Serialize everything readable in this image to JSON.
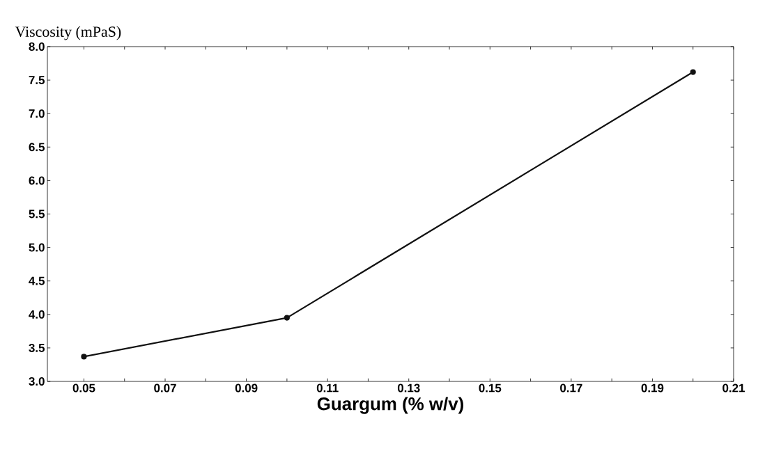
{
  "chart_data": {
    "type": "line",
    "ylabel": "Viscosity (mPaS)",
    "xlabel": "Guargum (% w/v)",
    "x": [
      0.05,
      0.1,
      0.2
    ],
    "series": [
      {
        "color": "#111111",
        "values": [
          3.37,
          3.95,
          7.62
        ]
      }
    ],
    "xlim": [
      0.041,
      0.21
    ],
    "ylim": [
      3.0,
      8.0
    ],
    "xticks": [
      {
        "value": 0.05,
        "label": "0.05"
      },
      {
        "value": 0.06,
        "label": null
      },
      {
        "value": 0.07,
        "label": "0.07"
      },
      {
        "value": 0.08,
        "label": null
      },
      {
        "value": 0.09,
        "label": "0.09"
      },
      {
        "value": 0.1,
        "label": null
      },
      {
        "value": 0.11,
        "label": "0.11"
      },
      {
        "value": 0.12,
        "label": null
      },
      {
        "value": 0.13,
        "label": "0.13"
      },
      {
        "value": 0.14,
        "label": null
      },
      {
        "value": 0.15,
        "label": "0.15"
      },
      {
        "value": 0.16,
        "label": null
      },
      {
        "value": 0.17,
        "label": "0.17"
      },
      {
        "value": 0.18,
        "label": null
      },
      {
        "value": 0.19,
        "label": "0.19"
      },
      {
        "value": 0.2,
        "label": null
      },
      {
        "value": 0.21,
        "label": "0.21"
      }
    ],
    "yticks": [
      {
        "value": 3,
        "label": "3.0"
      },
      {
        "value": 3.5,
        "label": "3.5"
      },
      {
        "value": 4,
        "label": "4.0"
      },
      {
        "value": 4.5,
        "label": "4.5"
      },
      {
        "value": 5,
        "label": "5.0"
      },
      {
        "value": 5.5,
        "label": "5.5"
      },
      {
        "value": 6,
        "label": "6.0"
      },
      {
        "value": 6.5,
        "label": "6.5"
      },
      {
        "value": 7,
        "label": "7.0"
      },
      {
        "value": 7.5,
        "label": "7.5"
      },
      {
        "value": 8,
        "label": "8.0"
      }
    ],
    "marker": "circle",
    "line_style": "solid"
  }
}
